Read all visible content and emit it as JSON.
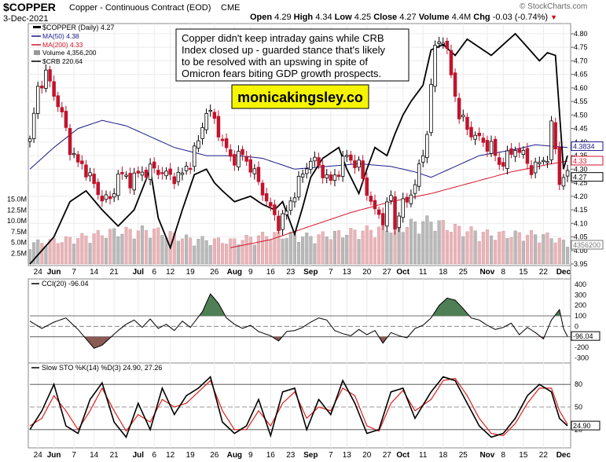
{
  "header": {
    "symbol": "$COPPER",
    "contract": "Copper - Continuous Contract (EOD)",
    "exchange": "CME",
    "date": "3-Dec-2021",
    "brand": "© StockCharts.com",
    "open_label": "Open",
    "open": "4.29",
    "high_label": "High",
    "high": "4.34",
    "low_label": "Low",
    "low": "4.25",
    "close_label": "Close",
    "close": "4.27",
    "volume_label": "Volume",
    "volume": "4.4M",
    "chg_label": "Chg",
    "chg": "-0.03 (-0.74%)",
    "chg_color": "#cc0000"
  },
  "legend": {
    "price": "$COPPER (Daily) 4.27",
    "ma50": "MA(50) 4.38",
    "ma200": "MA(200) 4.33",
    "volume": "Volume 4,356,200",
    "crb": "$CRB 220.64"
  },
  "annotation": {
    "text_lines": [
      "Copper didn't keep intraday gains while CRB",
      "Index closed up - guarded stance that's likely",
      "to be resolved with an upswing in spite of",
      "Omicron fears biting GDP growth prospects."
    ],
    "watermark": "monicakingsley.co"
  },
  "colors": {
    "up_candle": "#000000",
    "down_candle": "#c0142c",
    "ma50": "#1a1a8c",
    "ma200": "#d41428",
    "crb": "#000000",
    "vol_up": "#b9b9b9",
    "vol_down": "#e8b4b8",
    "cci_pos": "#4f7f55",
    "cci_neg": "#8a5a55",
    "sto_k": "#000000",
    "sto_d": "#e0201c",
    "watermark_bg": "#f5f500"
  },
  "chart_data": {
    "type": "candlestick",
    "title": "$COPPER Copper - Continuous Contract (EOD) CME",
    "price_axis": {
      "ylim": [
        3.95,
        4.82
      ],
      "ticks": [
        "4.80",
        "4.75",
        "4.70",
        "4.65",
        "4.60",
        "4.55",
        "4.50",
        "4.45",
        "4.40",
        "4.35",
        "4.30",
        "4.25",
        "4.20",
        "4.15",
        "4.10",
        "4.05",
        "4.00",
        "3.95"
      ],
      "badges": [
        {
          "text": "4.3834",
          "value": 4.3834,
          "color": "#1a1a8c"
        },
        {
          "text": "4.33",
          "value": 4.33,
          "color": "#d41428"
        },
        {
          "text": "4.27",
          "value": 4.27,
          "color": "#000000"
        },
        {
          "text": "4356200",
          "value": 4.0,
          "color": "#777777"
        }
      ]
    },
    "volume_axis": {
      "ticks": [
        "15.0M",
        "12.5M",
        "10.0M",
        "7.5M",
        "5.0M",
        "2.5M"
      ],
      "max_millions": 17.5
    },
    "x_labels": [
      "24",
      "Jun",
      "7",
      "14",
      "21",
      "Jul",
      "6",
      "12",
      "19",
      "26",
      "Aug",
      "9",
      "16",
      "23",
      "Sep",
      "7",
      "13",
      "20",
      "27",
      "Oct",
      "11",
      "18",
      "25",
      "Nov",
      "8",
      "15",
      "22",
      "Dec"
    ],
    "bold_x_labels": [
      "Jun",
      "Jul",
      "Aug",
      "Sep",
      "Oct",
      "Nov",
      "Dec"
    ],
    "x_positions": [
      2,
      6,
      11,
      16,
      21,
      27,
      31,
      35,
      40,
      46,
      51,
      55,
      60,
      65,
      70,
      75,
      79,
      84,
      89,
      93,
      98,
      103,
      108,
      114,
      118,
      123,
      128,
      133
    ],
    "n_bars": 135,
    "close_pts": [
      [
        0,
        4.4
      ],
      [
        2,
        4.6
      ],
      [
        4,
        4.65
      ],
      [
        6,
        4.58
      ],
      [
        8,
        4.5
      ],
      [
        10,
        4.38
      ],
      [
        12,
        4.32
      ],
      [
        14,
        4.3
      ],
      [
        17,
        4.21
      ],
      [
        20,
        4.18
      ],
      [
        22,
        4.28
      ],
      [
        25,
        4.26
      ],
      [
        27,
        4.28
      ],
      [
        30,
        4.3
      ],
      [
        33,
        4.29
      ],
      [
        35,
        4.27
      ],
      [
        38,
        4.28
      ],
      [
        40,
        4.33
      ],
      [
        42,
        4.4
      ],
      [
        44,
        4.52
      ],
      [
        46,
        4.48
      ],
      [
        48,
        4.4
      ],
      [
        50,
        4.34
      ],
      [
        53,
        4.35
      ],
      [
        55,
        4.31
      ],
      [
        58,
        4.22
      ],
      [
        60,
        4.15
      ],
      [
        62,
        4.1
      ],
      [
        64,
        4.14
      ],
      [
        66,
        4.22
      ],
      [
        68,
        4.28
      ],
      [
        70,
        4.34
      ],
      [
        72,
        4.31
      ],
      [
        75,
        4.25
      ],
      [
        77,
        4.3
      ],
      [
        79,
        4.35
      ],
      [
        82,
        4.31
      ],
      [
        84,
        4.22
      ],
      [
        86,
        4.14
      ],
      [
        88,
        4.12
      ],
      [
        90,
        4.2
      ],
      [
        91,
        4.08
      ],
      [
        92,
        4.15
      ],
      [
        94,
        4.18
      ],
      [
        96,
        4.25
      ],
      [
        98,
        4.35
      ],
      [
        99,
        4.45
      ],
      [
        100,
        4.6
      ],
      [
        101,
        4.75
      ],
      [
        103,
        4.79
      ],
      [
        105,
        4.65
      ],
      [
        107,
        4.5
      ],
      [
        109,
        4.45
      ],
      [
        111,
        4.42
      ],
      [
        113,
        4.4
      ],
      [
        115,
        4.38
      ],
      [
        117,
        4.32
      ],
      [
        119,
        4.34
      ],
      [
        121,
        4.38
      ],
      [
        123,
        4.35
      ],
      [
        125,
        4.3
      ],
      [
        127,
        4.32
      ],
      [
        129,
        4.35
      ],
      [
        130,
        4.45
      ],
      [
        131,
        4.38
      ],
      [
        132,
        4.25
      ],
      [
        133,
        4.28
      ],
      [
        134,
        4.27
      ]
    ],
    "ma50_pts": [
      [
        0,
        4.3
      ],
      [
        6,
        4.38
      ],
      [
        12,
        4.45
      ],
      [
        18,
        4.48
      ],
      [
        24,
        4.46
      ],
      [
        30,
        4.42
      ],
      [
        36,
        4.38
      ],
      [
        44,
        4.35
      ],
      [
        52,
        4.35
      ],
      [
        58,
        4.34
      ],
      [
        66,
        4.3
      ],
      [
        74,
        4.31
      ],
      [
        82,
        4.32
      ],
      [
        90,
        4.31
      ],
      [
        96,
        4.29
      ],
      [
        100,
        4.27
      ],
      [
        106,
        4.31
      ],
      [
        112,
        4.35
      ],
      [
        120,
        4.37
      ],
      [
        126,
        4.39
      ],
      [
        134,
        4.38
      ]
    ],
    "ma200_pts": [
      [
        50,
        4.01
      ],
      [
        60,
        4.04
      ],
      [
        70,
        4.09
      ],
      [
        80,
        4.14
      ],
      [
        90,
        4.18
      ],
      [
        100,
        4.21
      ],
      [
        110,
        4.25
      ],
      [
        120,
        4.29
      ],
      [
        130,
        4.32
      ],
      [
        134,
        4.33
      ]
    ],
    "crb_pts": [
      [
        0,
        3.95
      ],
      [
        6,
        4.05
      ],
      [
        10,
        4.18
      ],
      [
        14,
        4.22
      ],
      [
        18,
        4.15
      ],
      [
        22,
        4.09
      ],
      [
        26,
        4.15
      ],
      [
        30,
        4.3
      ],
      [
        32,
        4.12
      ],
      [
        35,
        4.01
      ],
      [
        38,
        4.15
      ],
      [
        41,
        4.28
      ],
      [
        44,
        4.3
      ],
      [
        46,
        4.25
      ],
      [
        48,
        4.22
      ],
      [
        51,
        4.18
      ],
      [
        55,
        4.2
      ],
      [
        58,
        4.17
      ],
      [
        61,
        4.15
      ],
      [
        63,
        4.18
      ],
      [
        66,
        4.06
      ],
      [
        68,
        4.16
      ],
      [
        70,
        4.27
      ],
      [
        73,
        4.34
      ],
      [
        77,
        4.38
      ],
      [
        79,
        4.3
      ],
      [
        82,
        4.21
      ],
      [
        84,
        4.3
      ],
      [
        86,
        4.38
      ],
      [
        89,
        4.35
      ],
      [
        91,
        4.43
      ],
      [
        93,
        4.5
      ],
      [
        95,
        4.55
      ],
      [
        98,
        4.61
      ],
      [
        100,
        4.74
      ],
      [
        103,
        4.76
      ],
      [
        106,
        4.72
      ],
      [
        109,
        4.78
      ],
      [
        112,
        4.75
      ],
      [
        115,
        4.72
      ],
      [
        118,
        4.76
      ],
      [
        121,
        4.8
      ],
      [
        124,
        4.75
      ],
      [
        127,
        4.7
      ],
      [
        129,
        4.73
      ],
      [
        131,
        4.72
      ],
      [
        133,
        4.3
      ],
      [
        134,
        4.35
      ]
    ],
    "volume_pts": [
      [
        0,
        4.5
      ],
      [
        10,
        5.5
      ],
      [
        20,
        7.0
      ],
      [
        30,
        7.5
      ],
      [
        40,
        5.5
      ],
      [
        50,
        5.0
      ],
      [
        60,
        6.5
      ],
      [
        70,
        6.0
      ],
      [
        80,
        7.0
      ],
      [
        90,
        8.0
      ],
      [
        100,
        9.5
      ],
      [
        105,
        8.0
      ],
      [
        115,
        6.5
      ],
      [
        125,
        6.5
      ],
      [
        130,
        6.0
      ],
      [
        134,
        4.4
      ]
    ],
    "cci": {
      "label": "CCI(20) -96.04",
      "ylim": [
        -320,
        400
      ],
      "ticks": [
        "400",
        "300",
        "200",
        "100",
        "0",
        "-100",
        "-200",
        "-300"
      ],
      "last": "-96.04",
      "pts": [
        [
          0,
          50
        ],
        [
          3,
          -20
        ],
        [
          6,
          40
        ],
        [
          9,
          80
        ],
        [
          12,
          -30
        ],
        [
          14,
          -120
        ],
        [
          16,
          -210
        ],
        [
          18,
          -180
        ],
        [
          20,
          -110
        ],
        [
          22,
          -40
        ],
        [
          24,
          20
        ],
        [
          26,
          60
        ],
        [
          28,
          -10
        ],
        [
          30,
          70
        ],
        [
          32,
          -20
        ],
        [
          34,
          20
        ],
        [
          36,
          -40
        ],
        [
          38,
          50
        ],
        [
          40,
          -10
        ],
        [
          43,
          140
        ],
        [
          45,
          310
        ],
        [
          47,
          220
        ],
        [
          49,
          80
        ],
        [
          51,
          20
        ],
        [
          53,
          -20
        ],
        [
          55,
          10
        ],
        [
          57,
          -50
        ],
        [
          60,
          -90
        ],
        [
          62,
          -140
        ],
        [
          64,
          -50
        ],
        [
          66,
          -40
        ],
        [
          68,
          -10
        ],
        [
          70,
          40
        ],
        [
          72,
          80
        ],
        [
          74,
          60
        ],
        [
          76,
          -40
        ],
        [
          78,
          -70
        ],
        [
          80,
          -90
        ],
        [
          82,
          -30
        ],
        [
          84,
          -80
        ],
        [
          86,
          -40
        ],
        [
          88,
          -160
        ],
        [
          90,
          -60
        ],
        [
          92,
          -90
        ],
        [
          94,
          -110
        ],
        [
          96,
          -20
        ],
        [
          98,
          10
        ],
        [
          100,
          80
        ],
        [
          102,
          200
        ],
        [
          104,
          270
        ],
        [
          106,
          250
        ],
        [
          108,
          170
        ],
        [
          110,
          80
        ],
        [
          112,
          60
        ],
        [
          114,
          10
        ],
        [
          116,
          -30
        ],
        [
          118,
          -10
        ],
        [
          120,
          30
        ],
        [
          122,
          -80
        ],
        [
          124,
          -10
        ],
        [
          126,
          -60
        ],
        [
          128,
          -120
        ],
        [
          130,
          60
        ],
        [
          132,
          160
        ],
        [
          133,
          -20
        ],
        [
          134,
          -96
        ]
      ]
    },
    "sto": {
      "label": "Slow STO %K(14) %D(3) 24.90, 27.26",
      "ylim": [
        0,
        100
      ],
      "ticks": [
        "80",
        "50",
        "20"
      ],
      "last": "24.90",
      "k_pts": [
        [
          0,
          20
        ],
        [
          3,
          45
        ],
        [
          6,
          80
        ],
        [
          9,
          25
        ],
        [
          12,
          15
        ],
        [
          15,
          60
        ],
        [
          18,
          82
        ],
        [
          21,
          30
        ],
        [
          24,
          10
        ],
        [
          27,
          55
        ],
        [
          30,
          20
        ],
        [
          33,
          75
        ],
        [
          36,
          40
        ],
        [
          39,
          65
        ],
        [
          42,
          75
        ],
        [
          45,
          90
        ],
        [
          48,
          30
        ],
        [
          51,
          15
        ],
        [
          54,
          25
        ],
        [
          57,
          60
        ],
        [
          60,
          12
        ],
        [
          63,
          70
        ],
        [
          66,
          75
        ],
        [
          69,
          20
        ],
        [
          72,
          60
        ],
        [
          75,
          40
        ],
        [
          78,
          85
        ],
        [
          81,
          55
        ],
        [
          84,
          15
        ],
        [
          87,
          20
        ],
        [
          90,
          70
        ],
        [
          93,
          75
        ],
        [
          96,
          35
        ],
        [
          100,
          70
        ],
        [
          103,
          90
        ],
        [
          106,
          85
        ],
        [
          109,
          55
        ],
        [
          112,
          25
        ],
        [
          115,
          10
        ],
        [
          118,
          15
        ],
        [
          121,
          35
        ],
        [
          124,
          65
        ],
        [
          127,
          80
        ],
        [
          130,
          70
        ],
        [
          132,
          35
        ],
        [
          134,
          25
        ]
      ],
      "d_pts": [
        [
          0,
          25
        ],
        [
          3,
          35
        ],
        [
          6,
          65
        ],
        [
          9,
          45
        ],
        [
          12,
          20
        ],
        [
          15,
          45
        ],
        [
          18,
          75
        ],
        [
          21,
          45
        ],
        [
          24,
          18
        ],
        [
          27,
          40
        ],
        [
          30,
          30
        ],
        [
          33,
          60
        ],
        [
          36,
          50
        ],
        [
          39,
          55
        ],
        [
          42,
          70
        ],
        [
          45,
          85
        ],
        [
          48,
          45
        ],
        [
          51,
          20
        ],
        [
          54,
          20
        ],
        [
          57,
          45
        ],
        [
          60,
          25
        ],
        [
          63,
          55
        ],
        [
          66,
          70
        ],
        [
          69,
          35
        ],
        [
          72,
          50
        ],
        [
          75,
          45
        ],
        [
          78,
          75
        ],
        [
          81,
          65
        ],
        [
          84,
          25
        ],
        [
          87,
          18
        ],
        [
          90,
          55
        ],
        [
          93,
          72
        ],
        [
          96,
          45
        ],
        [
          100,
          60
        ],
        [
          103,
          85
        ],
        [
          106,
          88
        ],
        [
          109,
          65
        ],
        [
          112,
          35
        ],
        [
          115,
          15
        ],
        [
          118,
          12
        ],
        [
          121,
          28
        ],
        [
          124,
          55
        ],
        [
          127,
          75
        ],
        [
          130,
          75
        ],
        [
          132,
          45
        ],
        [
          134,
          27
        ]
      ]
    }
  }
}
